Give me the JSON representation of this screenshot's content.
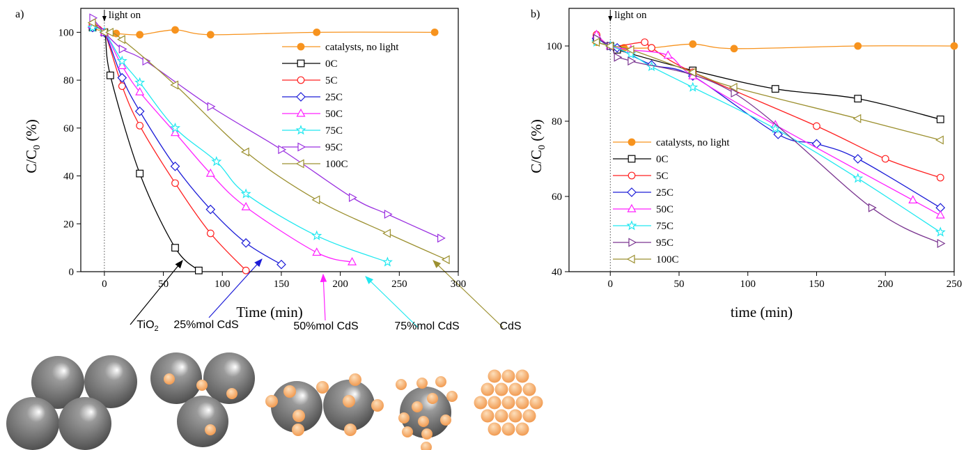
{
  "chart_data": [
    {
      "type": "line",
      "panel_label": "a)",
      "annotation": "light on",
      "x_label": "Time (min)",
      "y_label": [
        "C/C",
        "0",
        " (%)"
      ],
      "xlim": [
        -20,
        300
      ],
      "ylim": [
        0,
        110
      ],
      "xticks": [
        0,
        50,
        100,
        150,
        200,
        250,
        300
      ],
      "yticks": [
        0,
        20,
        40,
        60,
        80,
        100
      ],
      "legend": "upper right",
      "series": [
        {
          "name": "catalysts, no light",
          "color": "#f7931e",
          "marker": "circle-filled",
          "x": [
            -10,
            0,
            10,
            30,
            60,
            90,
            180,
            280
          ],
          "values": [
            102,
            100,
            99.5,
            99,
            101,
            99,
            100,
            100
          ]
        },
        {
          "name": "0C",
          "color": "#000000",
          "marker": "square",
          "x": [
            -10,
            0,
            5,
            30,
            60,
            80
          ],
          "values": [
            102,
            100,
            82,
            41,
            10,
            0.5
          ]
        },
        {
          "name": "5C",
          "color": "#ff2020",
          "marker": "circle",
          "x": [
            -10,
            0,
            15,
            30,
            60,
            90,
            120
          ],
          "values": [
            103,
            100,
            77.5,
            61,
            37,
            16,
            0.5
          ]
        },
        {
          "name": "25C",
          "color": "#1c1cd8",
          "marker": "diamond",
          "x": [
            -10,
            0,
            15,
            30,
            60,
            90,
            120,
            150
          ],
          "values": [
            102,
            100,
            81,
            67,
            44,
            26,
            12,
            3
          ]
        },
        {
          "name": "50C",
          "color": "#ff20ff",
          "marker": "triangle-up",
          "x": [
            -10,
            0,
            15,
            30,
            60,
            90,
            120,
            180,
            210
          ],
          "values": [
            103,
            100,
            86,
            75,
            58,
            41,
            27,
            8,
            4
          ]
        },
        {
          "name": "75C",
          "color": "#20e8f0",
          "marker": "star",
          "x": [
            -10,
            0,
            15,
            30,
            60,
            95,
            120,
            180,
            240
          ],
          "values": [
            102,
            100,
            88,
            79,
            60,
            46,
            32.5,
            15,
            4
          ]
        },
        {
          "name": "95C",
          "color": "#9a30e0",
          "marker": "triangle-right",
          "x": [
            -10,
            0,
            15,
            35,
            90,
            150,
            210,
            240,
            285
          ],
          "values": [
            106,
            100,
            93,
            88,
            69,
            51,
            31,
            24,
            14
          ]
        },
        {
          "name": "100C",
          "color": "#9c9030",
          "marker": "triangle-left",
          "x": [
            -10,
            0,
            5,
            15,
            60,
            120,
            180,
            240,
            290
          ],
          "values": [
            104,
            100,
            100,
            97,
            78,
            50,
            30,
            16,
            5
          ]
        }
      ]
    },
    {
      "type": "line",
      "panel_label": "b)",
      "annotation": "light on",
      "x_label": "time (min)",
      "y_label": [
        "C/C",
        "0",
        " (%)"
      ],
      "xlim": [
        -30,
        250
      ],
      "ylim": [
        40,
        110
      ],
      "xticks": [
        0,
        50,
        100,
        150,
        200,
        250
      ],
      "yticks": [
        40,
        60,
        80,
        100
      ],
      "legend": "lower left",
      "series": [
        {
          "name": "catalysts, no light",
          "color": "#f7931e",
          "marker": "circle-filled",
          "x": [
            -10,
            0,
            10,
            30,
            60,
            90,
            180,
            250
          ],
          "values": [
            101,
            100,
            99.5,
            99.5,
            100.5,
            99.3,
            100,
            100
          ]
        },
        {
          "name": "0C",
          "color": "#000000",
          "marker": "square",
          "x": [
            -10,
            0,
            5,
            60,
            120,
            180,
            240
          ],
          "values": [
            102,
            100,
            99,
            93.5,
            88.6,
            86,
            80.5
          ]
        },
        {
          "name": "5C",
          "color": "#ff2020",
          "marker": "circle",
          "x": [
            -10,
            0,
            25,
            30,
            60,
            150,
            200,
            240
          ],
          "values": [
            103,
            100,
            101,
            99.5,
            93,
            78.7,
            70,
            65
          ]
        },
        {
          "name": "25C",
          "color": "#1c1cd8",
          "marker": "diamond",
          "x": [
            -10,
            0,
            5,
            30,
            60,
            122,
            150,
            180,
            240
          ],
          "values": [
            102,
            100,
            99.5,
            95,
            92,
            76.5,
            74,
            70,
            57
          ]
        },
        {
          "name": "50C",
          "color": "#ff20ff",
          "marker": "triangle-up",
          "x": [
            -10,
            0,
            15,
            42,
            60,
            120,
            220,
            240
          ],
          "values": [
            103,
            100,
            99,
            97.5,
            92,
            79,
            59,
            55
          ]
        },
        {
          "name": "75C",
          "color": "#20e8f0",
          "marker": "star",
          "x": [
            -10,
            0,
            15,
            30,
            60,
            120,
            180,
            240
          ],
          "values": [
            101,
            100,
            97.8,
            94.5,
            89,
            78,
            64.8,
            50.5
          ]
        },
        {
          "name": "95C",
          "color": "#7a3590",
          "marker": "triangle-right",
          "x": [
            -10,
            0,
            5,
            15,
            90,
            190,
            240
          ],
          "values": [
            102,
            100,
            97,
            96,
            87.5,
            57,
            47.5
          ]
        },
        {
          "name": "100C",
          "color": "#9c9030",
          "marker": "triangle-left",
          "x": [
            -10,
            0,
            15,
            60,
            90,
            180,
            240
          ],
          "values": [
            101,
            100,
            99,
            93,
            89,
            80.7,
            75
          ]
        }
      ]
    }
  ],
  "illustration_labels": [
    [
      "TiO",
      "2"
    ],
    [
      "25%mol CdS"
    ],
    [
      "50%mol CdS"
    ],
    [
      "75%mol CdS"
    ],
    [
      "CdS"
    ]
  ]
}
